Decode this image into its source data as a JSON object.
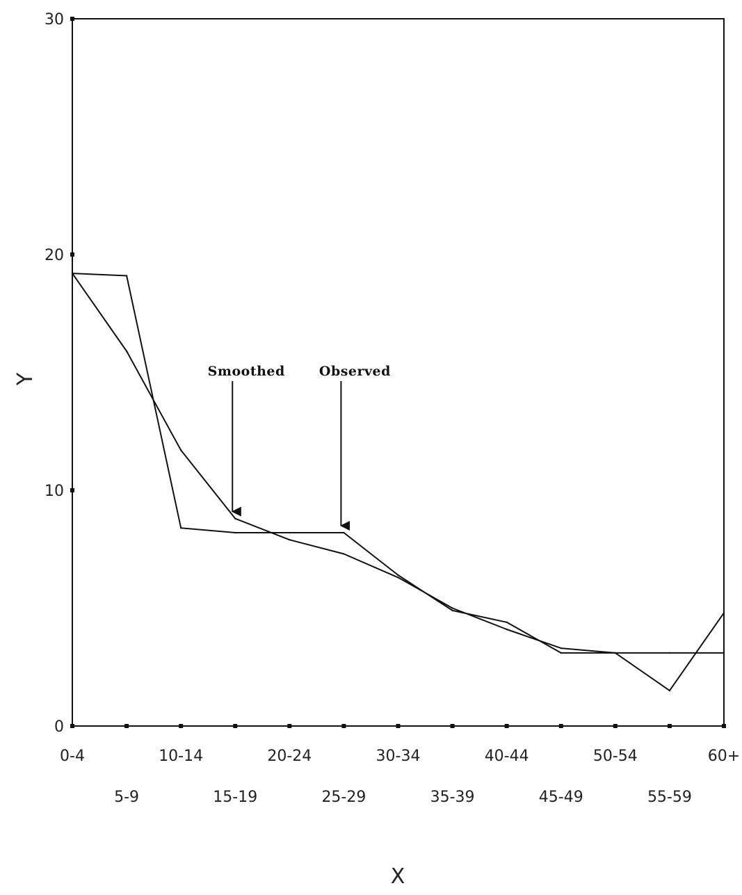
{
  "chart_data": {
    "type": "line",
    "title": "",
    "xlabel": "X",
    "ylabel": "Y",
    "ylim": [
      0,
      30
    ],
    "yticks": [
      "0",
      "10",
      "20",
      "30"
    ],
    "categories": [
      "0-4",
      "5-9",
      "10-14",
      "15-19",
      "20-24",
      "25-29",
      "30-34",
      "35-39",
      "40-44",
      "45-49",
      "50-54",
      "55-59",
      "60+"
    ],
    "series": [
      {
        "name": "Observed",
        "values": [
          19.2,
          19.1,
          8.4,
          8.2,
          8.2,
          8.2,
          6.4,
          4.9,
          4.4,
          3.1,
          3.1,
          1.5,
          4.8
        ]
      },
      {
        "name": "Smoothed",
        "values": [
          19.2,
          15.9,
          11.7,
          8.8,
          7.9,
          7.3,
          6.3,
          5.0,
          4.1,
          3.3,
          3.1,
          3.1,
          3.1
        ]
      }
    ],
    "annotations": [
      {
        "label": "Smoothed",
        "category_index": 3
      },
      {
        "label": "Observed",
        "category_index": 5
      }
    ],
    "grid": false,
    "legend": "none"
  }
}
